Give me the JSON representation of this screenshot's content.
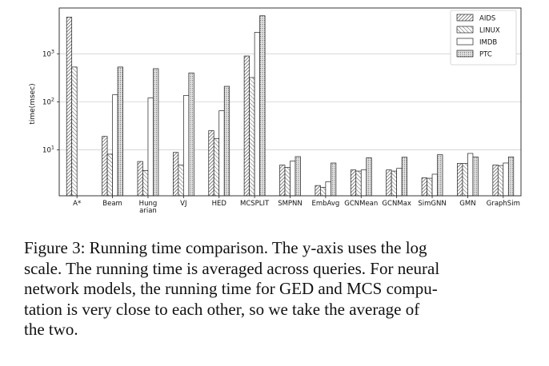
{
  "chart_data": {
    "type": "bar",
    "title": "",
    "xlabel": "",
    "ylabel": "time(msec)",
    "yscale": "log",
    "ylim": [
      1.1,
      9000
    ],
    "yticks": [
      10,
      100,
      1000
    ],
    "ytick_labels": [
      "10",
      "10",
      "10"
    ],
    "ytick_exponents": [
      "1",
      "2",
      "3"
    ],
    "grid": "horizontal",
    "legend_position": "top-right",
    "categories": [
      "A*",
      "Beam",
      "Hung\narian",
      "VJ",
      "HED",
      "MCSPLIT",
      "SMPNN",
      "EmbAvg",
      "GCNMean",
      "GCNMax",
      "SimGNN",
      "GMN",
      "GraphSim"
    ],
    "series": [
      {
        "name": "AIDS",
        "pattern": "hatch-dense",
        "values": [
          5800,
          19,
          5.7,
          8.8,
          25,
          900,
          4.8,
          1.8,
          3.8,
          3.8,
          2.6,
          5.2,
          4.8
        ]
      },
      {
        "name": "LINUX",
        "pattern": "hatch-sparse",
        "values": [
          530,
          8.1,
          3.7,
          4.8,
          17,
          320,
          4.3,
          1.65,
          3.6,
          3.6,
          2.55,
          5.2,
          4.7
        ]
      },
      {
        "name": "IMDB",
        "pattern": "blank",
        "values": [
          null,
          140,
          120,
          135,
          65,
          2800,
          5.8,
          2.15,
          3.8,
          4.1,
          3.1,
          8.4,
          5.3
        ]
      },
      {
        "name": "PTC",
        "pattern": "dots",
        "values": [
          null,
          530,
          490,
          400,
          210,
          6200,
          7.2,
          5.3,
          6.8,
          7.0,
          7.9,
          7.1,
          7.1
        ]
      }
    ]
  },
  "caption": {
    "lines": [
      "Figure 3: Running time comparison. The y-axis uses the log",
      "scale. The running time is averaged across queries. For neural",
      "network models, the running time for GED and MCS compu-",
      "tation is very close to each other, so we take the average of",
      "the two."
    ]
  }
}
